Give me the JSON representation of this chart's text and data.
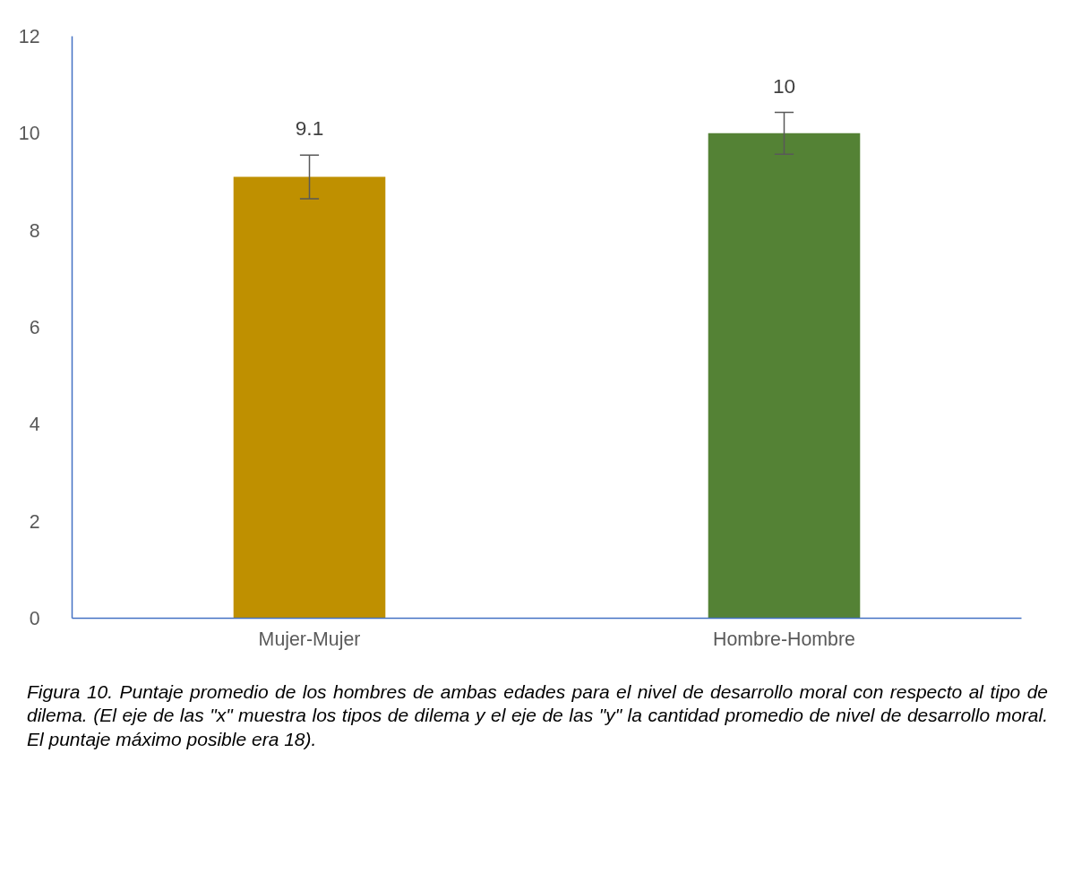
{
  "chart_data": {
    "type": "bar",
    "categories": [
      "Mujer-Mujer",
      "Hombre-Hombre"
    ],
    "values": [
      9.1,
      10
    ],
    "colors": [
      "#bf9000",
      "#548235"
    ],
    "errors": [
      0.45,
      0.43
    ],
    "data_labels": true,
    "ylim": [
      0,
      12
    ],
    "yticks": [
      0,
      2,
      4,
      6,
      8,
      10,
      12
    ],
    "grid": false,
    "annotations": [
      "Figura 10. Puntaje promedio de los hombres de ambas edades para el nivel de desarrollo moral con respecto al tipo de dilema. (El eje de las \"x\" muestra los tipos de dilema y el eje de las \"y\" la cantidad promedio de nivel de desarrollo moral. El puntaje máximo posible era 18)."
    ]
  }
}
